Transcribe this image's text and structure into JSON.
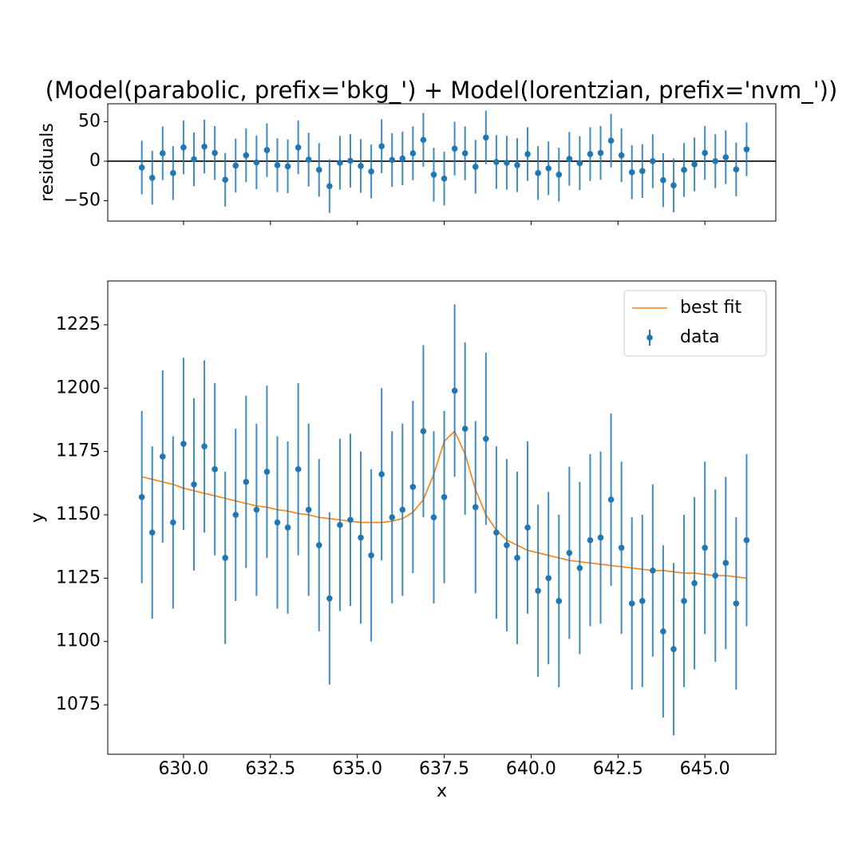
{
  "chart_data": [
    {
      "type": "errorbar",
      "title": "(Model(parabolic, prefix='bkg_') + Model(lorentzian, prefix='nvm_'))",
      "ylabel": "residuals",
      "x": [
        628.8,
        629.1,
        629.4,
        629.7,
        630.0,
        630.3,
        630.6,
        630.9,
        631.2,
        631.5,
        631.8,
        632.1,
        632.4,
        632.7,
        633.0,
        633.3,
        633.6,
        633.9,
        634.2,
        634.5,
        634.8,
        635.1,
        635.4,
        635.7,
        636.0,
        636.3,
        636.6,
        636.9,
        637.2,
        637.5,
        637.8,
        638.1,
        638.4,
        638.7,
        639.0,
        639.3,
        639.6,
        639.9,
        640.2,
        640.5,
        640.8,
        641.1,
        641.4,
        641.7,
        642.0,
        642.3,
        642.6,
        642.9,
        643.2,
        643.5,
        643.8,
        644.1,
        644.4,
        644.7,
        645.0,
        645.3,
        645.6,
        645.9,
        646.2
      ],
      "values": [
        -8,
        -21,
        10,
        -15,
        17.5,
        2.5,
        18.5,
        10.5,
        -23.5,
        -5.5,
        7.5,
        -1.5,
        14,
        -5,
        -6.5,
        17.5,
        2,
        -11,
        -31.5,
        -2,
        0.5,
        -6,
        -13,
        19,
        1.5,
        3.5,
        10,
        27,
        -17,
        -22,
        16,
        10,
        -7,
        30,
        -1,
        -2,
        -5,
        9,
        -15,
        -9,
        -17,
        3,
        -2.5,
        9,
        10.5,
        26,
        7.5,
        -14,
        -12.5,
        0,
        -24,
        -30.5,
        -11,
        -4,
        10.5,
        0,
        5,
        -10.5,
        15
      ],
      "errors": [
        34,
        34,
        34,
        34,
        34,
        34,
        34,
        34,
        34,
        34,
        34,
        34,
        34,
        34,
        34,
        34,
        34,
        34,
        34,
        34,
        34,
        34,
        34,
        34,
        34,
        34,
        34,
        34,
        34,
        34,
        34,
        34,
        34,
        34,
        34,
        34,
        34,
        34,
        34,
        34,
        34,
        34,
        34,
        34,
        34,
        34,
        34,
        34,
        34,
        34,
        34,
        34,
        34,
        34,
        34,
        34,
        34,
        34,
        34
      ],
      "color": "#1f77b4",
      "hline": 0,
      "hline_color": "#000000",
      "xlim": [
        627.82,
        647.04
      ],
      "ylim": [
        -75.8,
        72.7
      ],
      "xticks": [
        630,
        632.5,
        635,
        637.5,
        640,
        642.5,
        645
      ],
      "yticks": [
        {
          "value": -50,
          "label": "−50"
        },
        0,
        50
      ]
    },
    {
      "type": "errorbar",
      "xlabel": "x",
      "ylabel": "y",
      "x": [
        628.8,
        629.1,
        629.4,
        629.7,
        630.0,
        630.3,
        630.6,
        630.9,
        631.2,
        631.5,
        631.8,
        632.1,
        632.4,
        632.7,
        633.0,
        633.3,
        633.6,
        633.9,
        634.2,
        634.5,
        634.8,
        635.1,
        635.4,
        635.7,
        636.0,
        636.3,
        636.6,
        636.9,
        637.2,
        637.5,
        637.8,
        638.1,
        638.4,
        638.7,
        639.0,
        639.3,
        639.6,
        639.9,
        640.2,
        640.5,
        640.8,
        641.1,
        641.4,
        641.7,
        642.0,
        642.3,
        642.6,
        642.9,
        643.2,
        643.5,
        643.8,
        644.1,
        644.4,
        644.7,
        645.0,
        645.3,
        645.6,
        645.9,
        646.2
      ],
      "series": [
        {
          "name": "best fit",
          "kind": "line",
          "color": "#ff7f0e",
          "values": [
            1165,
            1164,
            1163,
            1162,
            1160.5,
            1159.5,
            1158.5,
            1157.5,
            1156.5,
            1155.5,
            1154.5,
            1153.5,
            1153,
            1152,
            1151.5,
            1150.5,
            1150,
            1149,
            1148.5,
            1148,
            1147.5,
            1147,
            1147,
            1147,
            1147.5,
            1148.5,
            1151,
            1156,
            1166,
            1179,
            1183,
            1174,
            1160,
            1150,
            1144,
            1140,
            1138,
            1136,
            1135,
            1134,
            1133,
            1132,
            1131.5,
            1131,
            1130.5,
            1130,
            1129.5,
            1129,
            1128.5,
            1128,
            1128,
            1127.5,
            1127,
            1127,
            1126.5,
            1126,
            1126,
            1125.5,
            1125
          ]
        },
        {
          "name": "data",
          "kind": "errorbar",
          "color": "#1f77b4",
          "values": [
            1157,
            1143,
            1173,
            1147,
            1178,
            1162,
            1177,
            1168,
            1133,
            1150,
            1163,
            1152,
            1167,
            1147,
            1145,
            1168,
            1152,
            1138,
            1117,
            1146,
            1148,
            1141,
            1134,
            1166,
            1149,
            1152,
            1161,
            1183,
            1149,
            1157,
            1199,
            1184,
            1153,
            1180,
            1143,
            1138,
            1133,
            1145,
            1120,
            1125,
            1116,
            1135,
            1129,
            1140,
            1141,
            1156,
            1137,
            1115,
            1116,
            1128,
            1104,
            1097,
            1116,
            1123,
            1137,
            1126,
            1131,
            1115,
            1140
          ],
          "errors": [
            34,
            34,
            34,
            34,
            34,
            34,
            34,
            34,
            34,
            34,
            34,
            34,
            34,
            34,
            34,
            34,
            34,
            34,
            34,
            34,
            34,
            34,
            34,
            34,
            34,
            34,
            34,
            34,
            34,
            34,
            34,
            34,
            34,
            34,
            34,
            34,
            34,
            34,
            34,
            34,
            34,
            34,
            34,
            34,
            34,
            34,
            34,
            34,
            34,
            34,
            34,
            34,
            34,
            34,
            34,
            34,
            34,
            34,
            34
          ]
        }
      ],
      "legend": "upper right",
      "xlim": [
        627.82,
        647.04
      ],
      "ylim": [
        1055.5,
        1242.3
      ],
      "xticks": [
        {
          "value": 630,
          "label": "630.0"
        },
        {
          "value": 632.5,
          "label": "632.5"
        },
        {
          "value": 635,
          "label": "635.0"
        },
        {
          "value": 637.5,
          "label": "637.5"
        },
        {
          "value": 640,
          "label": "640.0"
        },
        {
          "value": 642.5,
          "label": "642.5"
        },
        {
          "value": 645,
          "label": "645.0"
        }
      ],
      "yticks": [
        1075,
        1100,
        1125,
        1150,
        1175,
        1200,
        1225
      ]
    }
  ]
}
